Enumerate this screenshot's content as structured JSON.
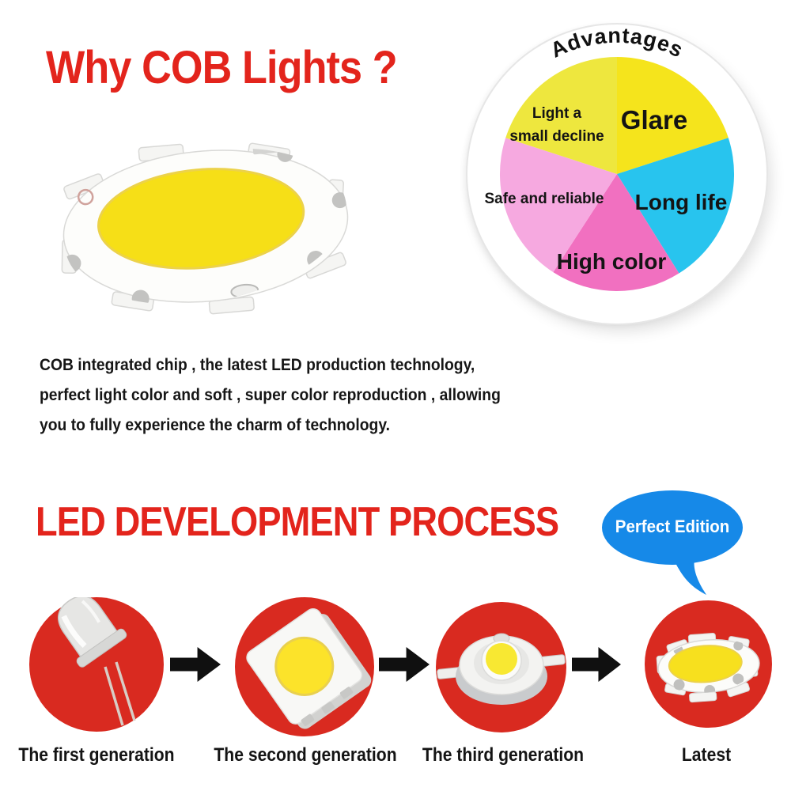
{
  "palette": {
    "title_red": "#e3241c",
    "circle_red": "#d92a20",
    "bubble_blue": "#1689e8",
    "text_black": "#161616",
    "board_white": "#fcfcfa",
    "phosphor_yellow": "#f6df17"
  },
  "header": {
    "title": "Why COB Lights ?"
  },
  "intro": {
    "lines": [
      "COB integrated chip , the latest LED production technology,",
      "perfect light color and soft , super color reproduction , allowing",
      "you to fully experience the charm of technology."
    ]
  },
  "chart_data": {
    "type": "pie",
    "title": "Advantages",
    "start": "top",
    "direction": "clockwise",
    "legend": "labels-inside",
    "slices": [
      {
        "label": "Glare",
        "degrees": 72,
        "percent": 20.0,
        "color": "#f5e41c"
      },
      {
        "label": "Long life",
        "degrees": 76,
        "percent": 21.1,
        "color": "#28c4ee"
      },
      {
        "label": "High color",
        "degrees": 65,
        "percent": 18.1,
        "color": "#f170c0"
      },
      {
        "label": "Safe and reliable",
        "degrees": 75,
        "percent": 20.8,
        "color": "#f6a9e0"
      },
      {
        "label": "Light a small decline",
        "label_lines": [
          "Light a",
          "small decline"
        ],
        "degrees": 72,
        "percent": 20.0,
        "color": "#eee73e"
      }
    ]
  },
  "process": {
    "title": "LED DEVELOPMENT PROCESS",
    "badge": "Perfect Edition",
    "steps": [
      {
        "caption": "The first generation",
        "image": "dip-led"
      },
      {
        "caption": "The second generation",
        "image": "smd-led"
      },
      {
        "caption": "The third generation",
        "image": "high-power-led"
      },
      {
        "caption": "Latest",
        "image": "cob-led"
      }
    ]
  }
}
